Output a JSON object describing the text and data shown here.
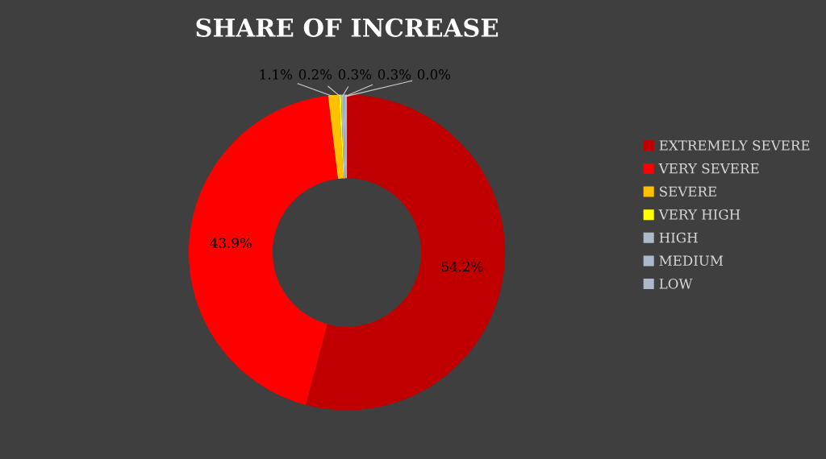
{
  "chart_data": {
    "type": "donut",
    "title": "SHARE OF INCREASE",
    "categories": [
      "EXTREMELY SEVERE",
      "VERY SEVERE",
      "SEVERE",
      "VERY HIGH",
      "HIGH",
      "MEDIUM",
      "LOW"
    ],
    "values": [
      54.2,
      43.9,
      1.1,
      0.2,
      0.3,
      0.3,
      0.0
    ],
    "colors": [
      "#c00000",
      "#ff0000",
      "#ffc000",
      "#ffff00",
      "#adb9ca",
      "#adb9ca",
      "#adb9ca"
    ],
    "value_labels": [
      "54.2%",
      "43.9%",
      "1.1%",
      "0.2%",
      "0.3%",
      "0.3%",
      "0.0%"
    ],
    "legend": "right"
  }
}
